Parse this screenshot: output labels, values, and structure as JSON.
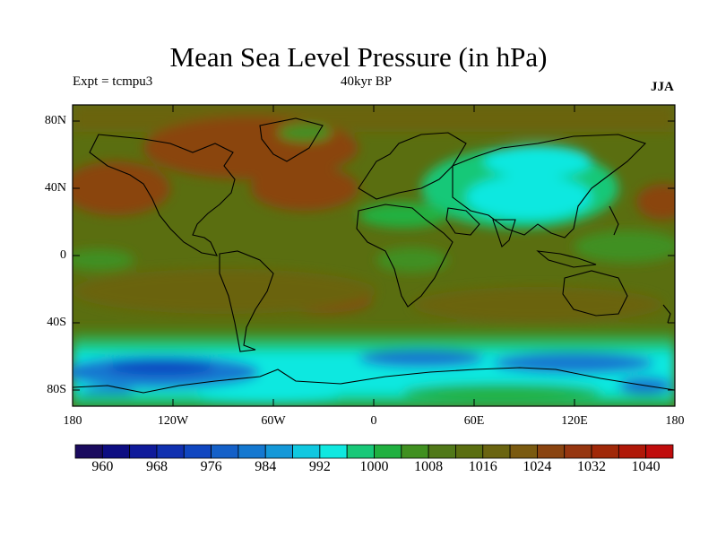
{
  "title": "Mean Sea Level Pressure (in hPa)",
  "left_label": "Expt = tcmpu3",
  "center_label": "40kyr BP",
  "right_label": "JJA",
  "lat_labels": [
    "80N",
    "40N",
    "0",
    "40S",
    "80S"
  ],
  "lon_labels": [
    "180",
    "120W",
    "60W",
    "0",
    "60E",
    "120E",
    "180"
  ],
  "colorbar": {
    "labels": [
      "960",
      "968",
      "976",
      "984",
      "992",
      "1000",
      "1008",
      "1016",
      "1024",
      "1032",
      "1040"
    ],
    "colors": [
      "#1a0a5e",
      "#0d0d82",
      "#0f1a9a",
      "#1030b0",
      "#1046c0",
      "#1460c8",
      "#1478d0",
      "#1498d8",
      "#10c8e0",
      "#10e8e0",
      "#18c878",
      "#20b040",
      "#409020",
      "#507818",
      "#5a6e10",
      "#6a6410",
      "#7a5a10",
      "#8a4410",
      "#963610",
      "#a02808",
      "#b01808",
      "#c00c0c"
    ]
  }
}
